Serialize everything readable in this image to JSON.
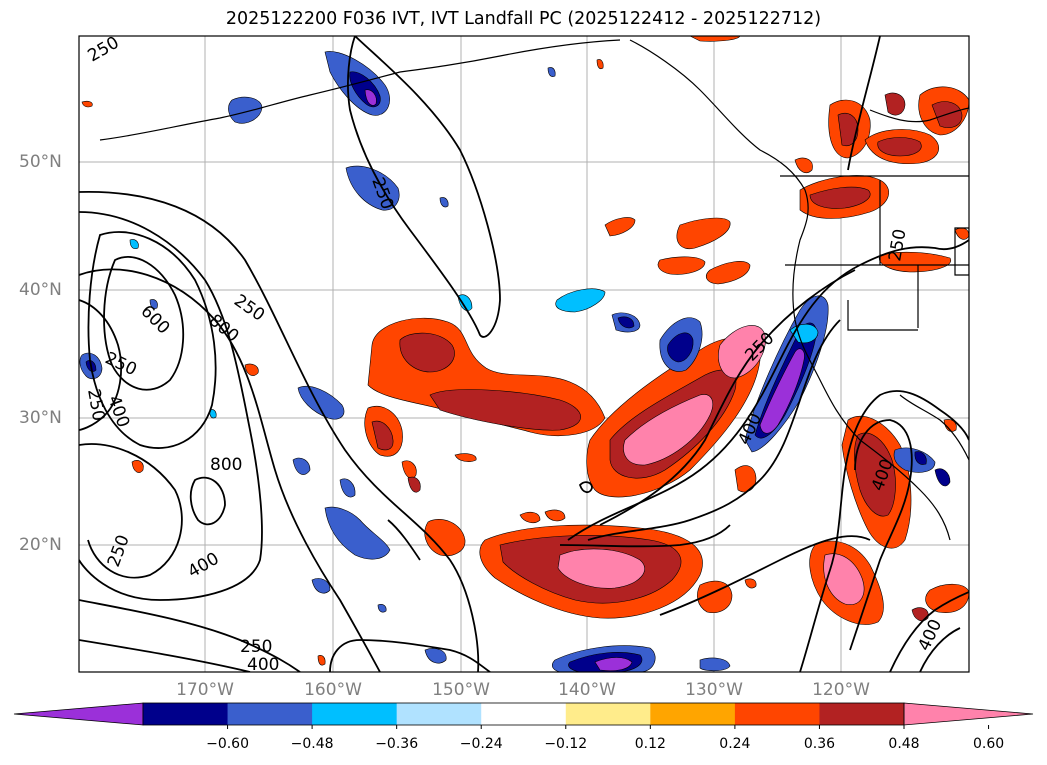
{
  "title": "2025122200 F036 IVT, IVT Landfall PC (2025122412 - 2025122712)",
  "lat_labels": [
    "50°N",
    "40°N",
    "30°N",
    "20°N"
  ],
  "lon_labels": [
    "170°W",
    "160°W",
    "150°W",
    "140°W",
    "130°W",
    "120°W"
  ],
  "contour_labels": {
    "c1": "250",
    "c2": "250",
    "c3": "600",
    "c4": "800",
    "c5": "250",
    "c6": "250",
    "c7": "400",
    "c8": "800",
    "c9": "250",
    "c10": "400",
    "c11": "250",
    "c12": "400",
    "c13": "250",
    "c14": "400",
    "c15": "400",
    "c16": "400",
    "c17": "250"
  },
  "colorbar": {
    "ticks": [
      "−0.60",
      "−0.48",
      "−0.36",
      "−0.24",
      "−0.12",
      "0.12",
      "0.24",
      "0.36",
      "0.48",
      "0.60"
    ],
    "colors": [
      "#9b30d9",
      "#00008b",
      "#3a5fcd",
      "#00bfff",
      "#b0e2ff",
      "#ffffff",
      "#ffec8b",
      "#ffa500",
      "#ff4500",
      "#b22222",
      "#ff82ab",
      "#ff82ab"
    ]
  }
}
